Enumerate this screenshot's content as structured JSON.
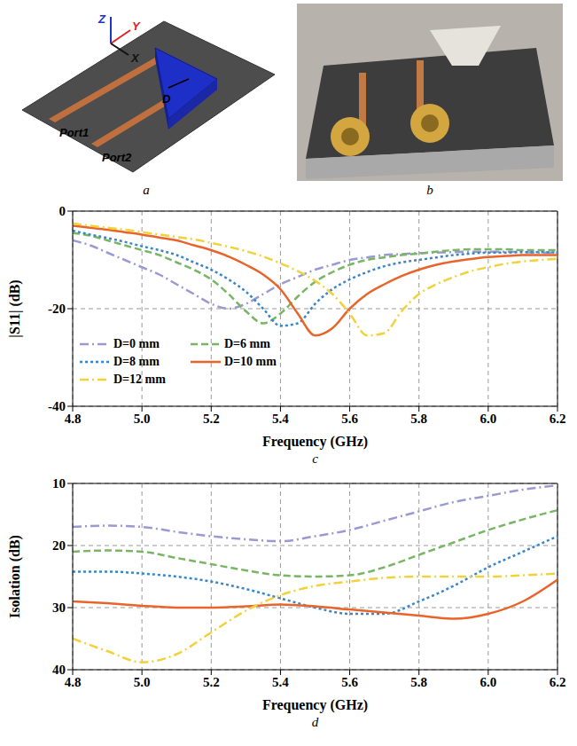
{
  "panels": [
    {
      "letter": "a",
      "texts": {
        "z": "Z",
        "y": "Y",
        "x": "X",
        "d": "D",
        "port1": "Port1",
        "port2": "Port2"
      }
    },
    {
      "letter": "b"
    }
  ],
  "chart_data": [
    {
      "type": "line",
      "title": "c",
      "x_label": "Frequency (GHz)",
      "y_label": "|S11| (dB)",
      "xlim": [
        4.8,
        6.2
      ],
      "xticks": [
        4.8,
        {
          "value": 5,
          "label": "5.0"
        },
        5.2,
        5.4,
        5.6,
        5.8,
        {
          "value": 6,
          "label": "6.0"
        },
        6.2
      ],
      "ylim": [
        -40,
        0
      ],
      "yticks": [
        -40,
        -20,
        0
      ],
      "grid": true,
      "legend": "lower left",
      "x": [
        4.8,
        4.85,
        4.9,
        4.95,
        5.0,
        5.05,
        5.1,
        5.15,
        5.2,
        5.25,
        5.3,
        5.35,
        5.4,
        5.45,
        5.5,
        5.55,
        5.6,
        5.65,
        5.7,
        5.75,
        5.8,
        5.85,
        5.9,
        5.95,
        6.0,
        6.05,
        6.1,
        6.15,
        6.2
      ],
      "series": [
        {
          "name": "D=0 mm",
          "color": "#9a9ad2",
          "line_style": "dashdot",
          "values": [
            -6,
            -7,
            -8.5,
            -10,
            -11.5,
            -13,
            -15,
            -17,
            -19,
            -20,
            -19,
            -17,
            -15,
            -13.5,
            -12,
            -11,
            -10,
            -9.5,
            -9,
            -8.8,
            -8.6,
            -8.5,
            -8.4,
            -8.3,
            -8.3,
            -8.3,
            -8.4,
            -8.5,
            -8.5
          ]
        },
        {
          "name": "D=6 mm",
          "color": "#78b564",
          "line_style": "dashed",
          "values": [
            -4.5,
            -5,
            -6,
            -7,
            -8,
            -9,
            -10.5,
            -12,
            -14,
            -17,
            -20.5,
            -23,
            -21,
            -17.5,
            -14.5,
            -12.5,
            -11,
            -10,
            -9.5,
            -9,
            -8.7,
            -8.3,
            -8,
            -7.8,
            -7.8,
            -7.8,
            -8,
            -8,
            -8
          ]
        },
        {
          "name": "D=8 mm",
          "color": "#3a86c8",
          "line_style": "dotted",
          "values": [
            -4,
            -4.8,
            -5.5,
            -6.3,
            -7.2,
            -8,
            -9,
            -10.5,
            -12,
            -14,
            -16.5,
            -20,
            -23.5,
            -23,
            -19,
            -16,
            -14,
            -12.5,
            -11.3,
            -10.5,
            -10,
            -9.5,
            -9,
            -8.7,
            -8.5,
            -8.5,
            -8.4,
            -8.4,
            -8.5
          ]
        },
        {
          "name": "D=10 mm",
          "color": "#e8642a",
          "line_style": "solid",
          "values": [
            -3,
            -3.4,
            -3.8,
            -4.3,
            -4.8,
            -5.4,
            -6,
            -7,
            -8,
            -9.3,
            -11,
            -13,
            -16,
            -21,
            -25.5,
            -24,
            -20,
            -17,
            -15,
            -13.3,
            -12,
            -11,
            -10.3,
            -9.8,
            -9.4,
            -9.2,
            -9,
            -9,
            -9
          ]
        },
        {
          "name": "D=12 mm",
          "color": "#f0d23a",
          "line_style": "dashdot",
          "values": [
            -2.5,
            -3,
            -3.4,
            -3.8,
            -4.3,
            -4.8,
            -5.3,
            -5.8,
            -6.5,
            -7.3,
            -8.2,
            -9.3,
            -10.7,
            -12.3,
            -14.3,
            -17,
            -21,
            -25.5,
            -25,
            -20.5,
            -17,
            -15,
            -13.5,
            -12.3,
            -11.5,
            -10.8,
            -10.3,
            -10,
            -9.8
          ]
        }
      ]
    },
    {
      "type": "line",
      "title": "d",
      "x_label": "Frequency (GHz)",
      "y_label": "Isolation (dB)",
      "xlim": [
        4.8,
        6.2
      ],
      "xticks": [
        4.8,
        {
          "value": 5,
          "label": "5.0"
        },
        5.2,
        5.4,
        5.6,
        5.8,
        {
          "value": 6,
          "label": "6.0"
        },
        6.2
      ],
      "ylim": [
        40,
        10
      ],
      "yticks": [
        10,
        20,
        30,
        40
      ],
      "grid": true,
      "x": [
        4.8,
        4.9,
        5.0,
        5.1,
        5.2,
        5.3,
        5.4,
        5.5,
        5.6,
        5.7,
        5.8,
        5.9,
        6.0,
        6.1,
        6.2
      ],
      "series": [
        {
          "color": "#9a9ad2",
          "line_style": "dashdot",
          "values": [
            17,
            16.8,
            17,
            17.8,
            18.5,
            19,
            19.3,
            18.5,
            17.5,
            16,
            14.5,
            13,
            12,
            11,
            10.3
          ]
        },
        {
          "color": "#78b564",
          "line_style": "dashed",
          "values": [
            21,
            20.8,
            21,
            22,
            23,
            24,
            24.8,
            25,
            24.8,
            23.5,
            21.5,
            19.5,
            17.5,
            15.8,
            14.3
          ]
        },
        {
          "color": "#3a86c8",
          "line_style": "dotted",
          "values": [
            24.2,
            24.2,
            24.5,
            25,
            25.8,
            27,
            28.5,
            30,
            31,
            31,
            29,
            26.5,
            23.5,
            21,
            18.5
          ]
        },
        {
          "color": "#e8642a",
          "line_style": "solid",
          "values": [
            29,
            29.3,
            29.7,
            30,
            30,
            29.8,
            29.5,
            29.8,
            30.3,
            30.8,
            31.3,
            31.8,
            31,
            29,
            25.5
          ]
        },
        {
          "color": "#f0d23a",
          "line_style": "dashdot",
          "values": [
            35,
            37,
            38.8,
            37.5,
            34,
            30.5,
            28,
            26.5,
            25.8,
            25.2,
            25,
            25,
            25,
            24.8,
            24.5
          ]
        }
      ]
    }
  ]
}
